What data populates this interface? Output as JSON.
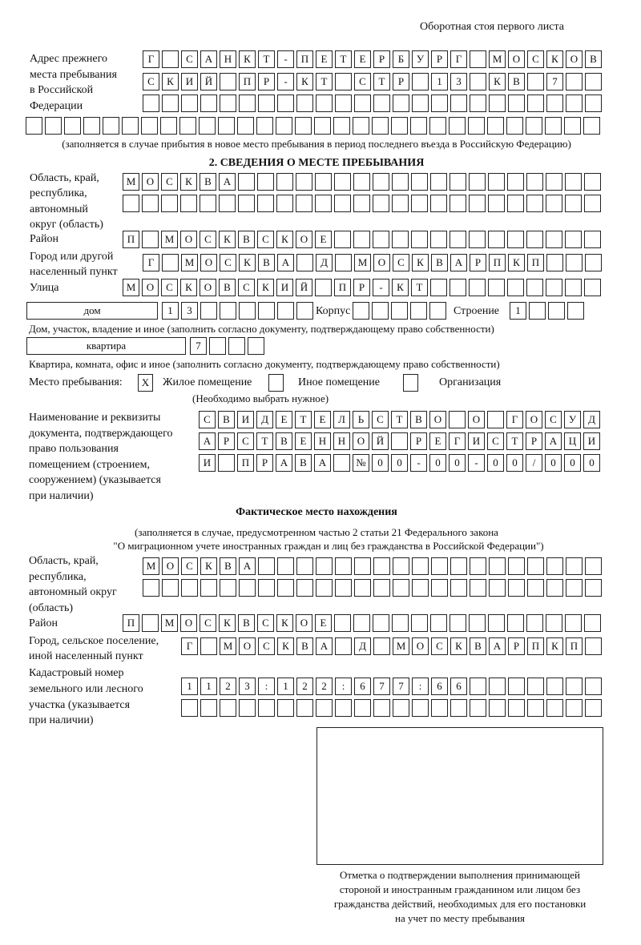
{
  "header": "Оборотная стоя первого листа",
  "prev_address": {
    "label": [
      "Адрес прежнего",
      "места пребывания",
      "в Российской",
      "Федерации"
    ],
    "rows": [
      [
        "Г",
        "",
        "С",
        "А",
        "Н",
        "К",
        "Т",
        "-",
        "П",
        "Е",
        "Т",
        "Е",
        "Р",
        "Б",
        "У",
        "Р",
        "Г",
        "",
        "М",
        "О",
        "С",
        "К",
        "О",
        "В"
      ],
      [
        "С",
        "К",
        "И",
        "Й",
        "",
        "П",
        "Р",
        "-",
        "К",
        "Т",
        "",
        "С",
        "Т",
        "Р",
        "",
        "1",
        "3",
        "",
        "К",
        "В",
        "",
        "7",
        "",
        ""
      ],
      [
        "",
        "",
        "",
        "",
        "",
        "",
        "",
        "",
        "",
        "",
        "",
        "",
        "",
        "",
        "",
        "",
        "",
        "",
        "",
        "",
        "",
        "",
        "",
        ""
      ],
      [
        "",
        "",
        "",
        "",
        "",
        "",
        "",
        "",
        "",
        "",
        "",
        "",
        "",
        "",
        "",
        "",
        "",
        "",
        "",
        "",
        "",
        "",
        "",
        "",
        "",
        "",
        "",
        "",
        "",
        ""
      ]
    ],
    "note": "(заполняется в случае прибытия в новое место пребывания в период последнего въезда в Российскую Федерацию)"
  },
  "section2": {
    "title": "2. СВЕДЕНИЯ О МЕСТЕ ПРЕБЫВАНИЯ",
    "region_label": [
      "Область, край,",
      "республика,",
      "автономный",
      "округ (область)"
    ],
    "region_rows": [
      [
        "М",
        "О",
        "С",
        "К",
        "В",
        "А",
        "",
        "",
        "",
        "",
        "",
        "",
        "",
        "",
        "",
        "",
        "",
        "",
        "",
        "",
        "",
        "",
        "",
        "",
        ""
      ],
      [
        "",
        "",
        "",
        "",
        "",
        "",
        "",
        "",
        "",
        "",
        "",
        "",
        "",
        "",
        "",
        "",
        "",
        "",
        "",
        "",
        "",
        "",
        "",
        "",
        ""
      ]
    ],
    "district_label": "Район",
    "district_row": [
      "П",
      "",
      "М",
      "О",
      "С",
      "К",
      "В",
      "С",
      "К",
      "О",
      "Е",
      "",
      "",
      "",
      "",
      "",
      "",
      "",
      "",
      "",
      "",
      "",
      "",
      "",
      ""
    ],
    "city_label": [
      "Город или другой",
      "населенный пункт"
    ],
    "city_row": [
      "Г",
      "",
      "М",
      "О",
      "С",
      "К",
      "В",
      "А",
      "",
      "Д",
      "",
      "М",
      "О",
      "С",
      "К",
      "В",
      "А",
      "Р",
      "П",
      "К",
      "П",
      "",
      "",
      ""
    ],
    "street_label": "Улица",
    "street_row": [
      "М",
      "О",
      "С",
      "К",
      "О",
      "В",
      "С",
      "К",
      "И",
      "Й",
      "",
      "П",
      "Р",
      "-",
      "К",
      "Т",
      "",
      "",
      "",
      "",
      "",
      "",
      "",
      "",
      ""
    ],
    "house_type": "дом",
    "house_cells": [
      "1",
      "3",
      "",
      "",
      "",
      "",
      "",
      ""
    ],
    "korpus_label": "Корпус",
    "korpus_cells": [
      "",
      "",
      "",
      "",
      ""
    ],
    "building_label": "Строение",
    "building_cells": [
      "1",
      "",
      "",
      ""
    ],
    "house_note": "Дом, участок, владение и иное (заполнить согласно документу, подтверждающему право собственности)",
    "apt_type": "квартира",
    "apt_cells": [
      "7",
      "",
      "",
      ""
    ],
    "apt_note": "Квартира, комната, офис и иное (заполнить согласно документу, подтверждающему право собственности)",
    "stay_label": "Место пребывания:",
    "stay_options": [
      {
        "mark": "X",
        "label": "Жилое помещение",
        "checked": true
      },
      {
        "mark": "",
        "label": "Иное помещение",
        "checked": false
      },
      {
        "mark": "",
        "label": "Организация",
        "checked": false
      }
    ],
    "stay_note": "(Необходимо выбрать нужное)",
    "doc_label": [
      "Наименование и реквизиты",
      "документа, подтверждающего",
      "право пользования",
      "помещением (строением,",
      "сооружением) (указывается",
      "при наличии)"
    ],
    "doc_rows": [
      [
        "С",
        "В",
        "И",
        "Д",
        "Е",
        "Т",
        "Е",
        "Л",
        "Ь",
        "С",
        "Т",
        "В",
        "О",
        "",
        "О",
        "",
        "Г",
        "О",
        "С",
        "У",
        "Д"
      ],
      [
        "А",
        "Р",
        "С",
        "Т",
        "В",
        "Е",
        "Н",
        "Н",
        "О",
        "Й",
        "",
        "Р",
        "Е",
        "Г",
        "И",
        "С",
        "Т",
        "Р",
        "А",
        "Ц",
        "И"
      ],
      [
        "И",
        "",
        "П",
        "Р",
        "А",
        "В",
        "А",
        "",
        "№",
        "0",
        "0",
        "-",
        "0",
        "0",
        "-",
        "0",
        "0",
        "/",
        "0",
        "0",
        "0"
      ]
    ]
  },
  "actual": {
    "title": "Фактическое место нахождения",
    "note": [
      "(заполняется в случае, предусмотренном частью 2 статьи 21 Федерального закона",
      "\"О миграционном учете иностранных граждан и лиц без гражданства в Российской Федерации\")"
    ],
    "region_label": [
      "Область, край,",
      "республика,",
      "автономный округ",
      "(область)"
    ],
    "region_rows": [
      [
        "М",
        "О",
        "С",
        "К",
        "В",
        "А",
        "",
        "",
        "",
        "",
        "",
        "",
        "",
        "",
        "",
        "",
        "",
        "",
        "",
        "",
        "",
        "",
        "",
        ""
      ],
      [
        "",
        "",
        "",
        "",
        "",
        "",
        "",
        "",
        "",
        "",
        "",
        "",
        "",
        "",
        "",
        "",
        "",
        "",
        "",
        "",
        "",
        "",
        "",
        ""
      ]
    ],
    "district_label": "Район",
    "district_row": [
      "П",
      "",
      "М",
      "О",
      "С",
      "К",
      "В",
      "С",
      "К",
      "О",
      "Е",
      "",
      "",
      "",
      "",
      "",
      "",
      "",
      "",
      "",
      "",
      "",
      "",
      "",
      ""
    ],
    "city_label": [
      "Город, сельское поселение,",
      "иной населенный пункт"
    ],
    "city_row": [
      "Г",
      "",
      "М",
      "О",
      "С",
      "К",
      "В",
      "А",
      "",
      "Д",
      "",
      "М",
      "О",
      "С",
      "К",
      "В",
      "А",
      "Р",
      "П",
      "К",
      "П",
      ""
    ],
    "cadastral_label": [
      "Кадастровый номер",
      "земельного или лесного",
      "участка (указывается",
      "при наличии)"
    ],
    "cadastral_rows": [
      [
        "1",
        "1",
        "2",
        "3",
        ":",
        "1",
        "2",
        "2",
        ":",
        "6",
        "7",
        "7",
        ":",
        "6",
        "6",
        "",
        "",
        "",
        "",
        "",
        "",
        ""
      ],
      [
        "",
        "",
        "",
        "",
        "",
        "",
        "",
        "",
        "",
        "",
        "",
        "",
        "",
        "",
        "",
        "",
        "",
        "",
        "",
        "",
        "",
        ""
      ]
    ]
  },
  "stamp": {
    "caption": [
      "Отметка о подтверждении выполнения принимающей",
      "стороной и иностранным гражданином или лицом без",
      "гражданства действий, необходимых для его постановки",
      "на учет по месту пребывания"
    ]
  }
}
